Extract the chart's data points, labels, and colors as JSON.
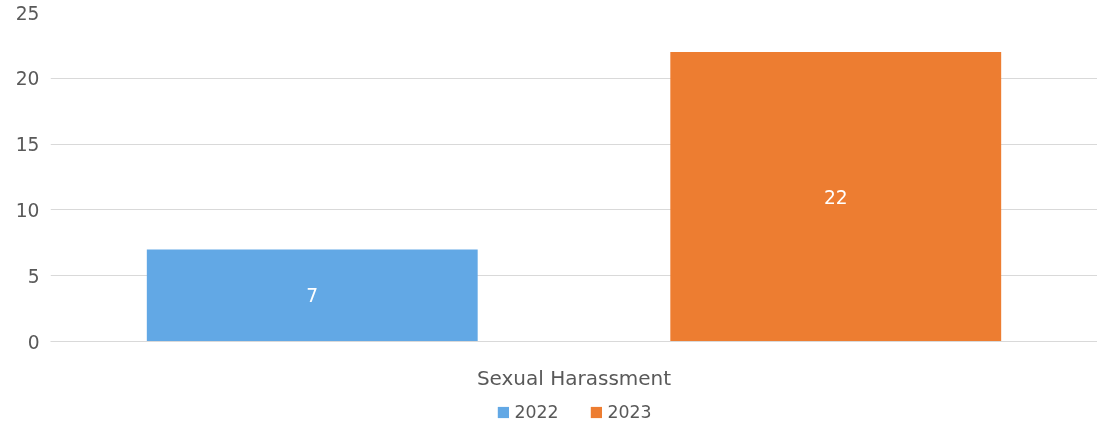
{
  "chart_data": {
    "type": "bar",
    "categories": [
      "Sexual Harassment"
    ],
    "series": [
      {
        "name": "2022",
        "color": "#62a8e5",
        "values": [
          7
        ]
      },
      {
        "name": "2023",
        "color": "#ed7d31",
        "values": [
          22
        ]
      }
    ],
    "ylim": [
      0,
      25
    ],
    "yticks": [
      0,
      5,
      10,
      15,
      20,
      25
    ],
    "grid": "y",
    "legend": "bottom",
    "data_labels": true
  }
}
